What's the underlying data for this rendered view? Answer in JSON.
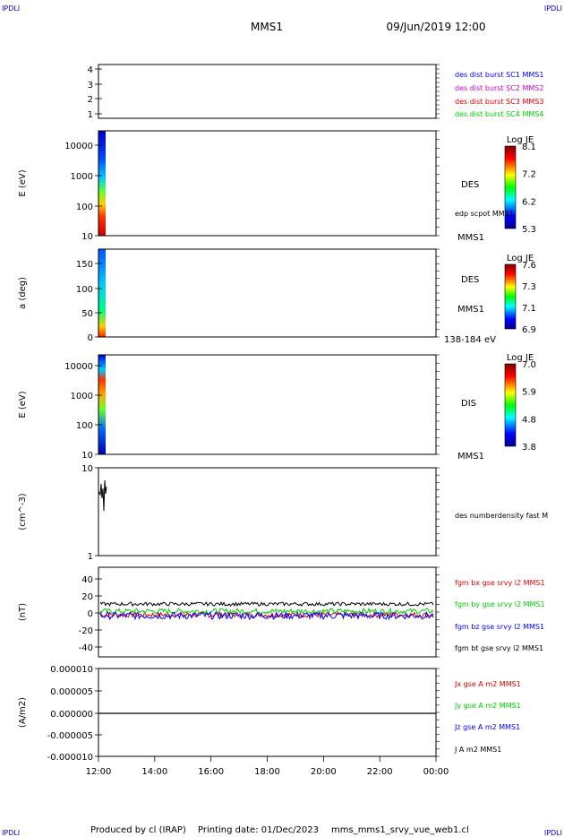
{
  "header": {
    "corner_text": "IPDLI",
    "spacecraft": "MMS1",
    "datetime": "09/Jun/2019 12:00"
  },
  "footer": {
    "produced_by": "Produced by cl (IRAP)",
    "printing_date": "Printing date: 01/Dec/2023",
    "filename": "mms_mms1_srvy_vue_web1.cl"
  },
  "x_ticks": [
    "12:00",
    "14:00",
    "16:00",
    "18:00",
    "20:00",
    "22:00",
    "00:00"
  ],
  "colors": {
    "mms1": "#0000ff",
    "mms2": "#cc00cc",
    "mms3": "#dd0000",
    "mms4": "#00cc00",
    "bx": "#dd0000",
    "by": "#00cc00",
    "bz": "#0000ff",
    "bt": "#000000"
  },
  "chart_data": [
    {
      "type": "line",
      "panel": "burst",
      "ylabel": "",
      "y_ticks": [
        "4",
        "3",
        "2",
        "1"
      ],
      "ylim": [
        0.5,
        4.3
      ],
      "legend": [
        "des dist burst SC1 MMS1",
        "des dist burst SC2 MMS2",
        "des dist burst SC3 MMS3",
        "des dist burst SC4 MMS4"
      ]
    },
    {
      "type": "heatmap",
      "panel": "des-energy",
      "ylabel": "E (eV)",
      "y_ticks": [
        "10000",
        "1000",
        "100",
        "10"
      ],
      "scale": "log",
      "ylim": [
        10,
        30000
      ],
      "side_label": "DES",
      "note": "edp scpot MMS1",
      "bottom_right": "MMS1",
      "colorbar": {
        "title": "Log JE",
        "ticks": [
          "8.1",
          "7.2",
          "6.2",
          "5.3"
        ]
      }
    },
    {
      "type": "heatmap",
      "panel": "des-pitch",
      "ylabel": "a (deg)",
      "y_ticks": [
        "150",
        "100",
        "50",
        "0"
      ],
      "ylim": [
        0,
        180
      ],
      "side_label": "DES",
      "side_label2": "MMS1",
      "bottom_right": "138-184 eV",
      "colorbar": {
        "title": "Log JE",
        "ticks": [
          "7.6",
          "7.3",
          "7.1",
          "6.9"
        ]
      }
    },
    {
      "type": "heatmap",
      "panel": "dis-energy",
      "ylabel": "E (eV)",
      "y_ticks": [
        "10000",
        "1000",
        "100",
        "10"
      ],
      "scale": "log",
      "ylim": [
        10,
        30000
      ],
      "side_label": "DIS",
      "bottom_right": "MMS1",
      "colorbar": {
        "title": "Log JE",
        "ticks": [
          "7.0",
          "5.9",
          "4.8",
          "3.8"
        ]
      }
    },
    {
      "type": "line",
      "panel": "density",
      "ylabel": "(cm^-3)",
      "y_ticks": [
        "10",
        "1"
      ],
      "scale": "log",
      "ylim": [
        1,
        10
      ],
      "legend": [
        "des numberdensity fast M"
      ]
    },
    {
      "type": "line",
      "panel": "fgm",
      "ylabel": "(nT)",
      "y_ticks": [
        "40",
        "20",
        "0",
        "-20",
        "-40"
      ],
      "ylim": [
        -50,
        50
      ],
      "legend": [
        "fgm bx gse srvy l2 MMS1",
        "fgm by gse srvy l2 MMS1",
        "fgm bz gse srvy l2 MMS1",
        "fgm bt gse srvy l2 MMS1"
      ],
      "series": [
        {
          "name": "fgm bx gse srvy l2 MMS1",
          "mean": -3,
          "noise": 3
        },
        {
          "name": "fgm by gse srvy l2 MMS1",
          "mean": 1,
          "noise": 3
        },
        {
          "name": "fgm bz gse srvy l2 MMS1",
          "mean": -4,
          "noise": 4
        },
        {
          "name": "fgm bt gse srvy l2 MMS1",
          "mean": 9,
          "noise": 2
        }
      ]
    },
    {
      "type": "line",
      "panel": "current",
      "ylabel": "(A/m2)",
      "y_ticks": [
        "0.000010",
        "0.000005",
        "0.000000",
        "-0.000005",
        "-0.000010"
      ],
      "ylim": [
        -1e-05,
        1e-05
      ],
      "legend": [
        "Jx gse A m2 MMS1",
        "Jy gse A m2 MMS1",
        "Jz gse A m2 MMS1",
        "J A m2 MMS1"
      ]
    }
  ]
}
